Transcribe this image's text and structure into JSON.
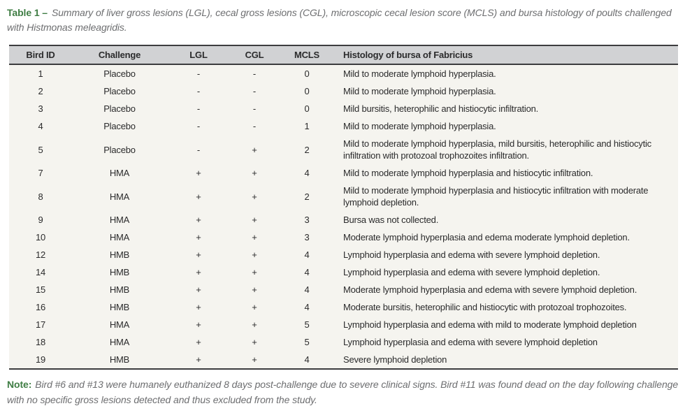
{
  "caption": {
    "label": "Table 1 –",
    "text": "Summary of liver gross lesions (LGL), cecal gross lesions (CGL), microscopic cecal lesion score (MCLS) and bursa histology of poults challenged with Histmonas meleagridis."
  },
  "table": {
    "columns": [
      "Bird ID",
      "Challenge",
      "LGL",
      "CGL",
      "MCLS",
      "Histology of bursa of Fabricius"
    ],
    "rows": [
      {
        "bird_id": "1",
        "challenge": "Placebo",
        "lgl": "-",
        "cgl": "-",
        "mcls": "0",
        "histology": "Mild to moderate lymphoid hyperplasia."
      },
      {
        "bird_id": "2",
        "challenge": "Placebo",
        "lgl": "-",
        "cgl": "-",
        "mcls": "0",
        "histology": "Mild to moderate lymphoid hyperplasia."
      },
      {
        "bird_id": "3",
        "challenge": "Placebo",
        "lgl": "-",
        "cgl": "-",
        "mcls": "0",
        "histology": "Mild bursitis, heterophilic and histiocytic infiltration."
      },
      {
        "bird_id": "4",
        "challenge": "Placebo",
        "lgl": "-",
        "cgl": "-",
        "mcls": "1",
        "histology": "Mild to moderate lymphoid hyperplasia."
      },
      {
        "bird_id": "5",
        "challenge": "Placebo",
        "lgl": "-",
        "cgl": "+",
        "mcls": "2",
        "histology": "Mild to moderate lymphoid hyperplasia, mild bursitis, heterophilic and histiocytic infiltration with protozoal trophozoites infiltration."
      },
      {
        "bird_id": "7",
        "challenge": "HMA",
        "lgl": "+",
        "cgl": "+",
        "mcls": "4",
        "histology": "Mild to moderate lymphoid hyperplasia and histiocytic infiltration."
      },
      {
        "bird_id": "8",
        "challenge": "HMA",
        "lgl": "+",
        "cgl": "+",
        "mcls": "2",
        "histology": "Mild to moderate lymphoid hyperplasia and histiocytic infiltration with moderate lymphoid depletion."
      },
      {
        "bird_id": "9",
        "challenge": "HMA",
        "lgl": "+",
        "cgl": "+",
        "mcls": "3",
        "histology": "Bursa was not collected."
      },
      {
        "bird_id": "10",
        "challenge": "HMA",
        "lgl": "+",
        "cgl": "+",
        "mcls": "3",
        "histology": "Moderate lymphoid hyperplasia and edema moderate lymphoid depletion."
      },
      {
        "bird_id": "12",
        "challenge": "HMB",
        "lgl": "+",
        "cgl": "+",
        "mcls": "4",
        "histology": "Lymphoid hyperplasia and edema with severe lymphoid depletion."
      },
      {
        "bird_id": "14",
        "challenge": "HMB",
        "lgl": "+",
        "cgl": "+",
        "mcls": "4",
        "histology": "Lymphoid hyperplasia and edema with severe lymphoid depletion."
      },
      {
        "bird_id": "15",
        "challenge": "HMB",
        "lgl": "+",
        "cgl": "+",
        "mcls": "4",
        "histology": "Moderate lymphoid hyperplasia and edema with severe lymphoid depletion."
      },
      {
        "bird_id": "16",
        "challenge": "HMB",
        "lgl": "+",
        "cgl": "+",
        "mcls": "4",
        "histology": "Moderate bursitis, heterophilic and histiocytic with protozoal trophozoites."
      },
      {
        "bird_id": "17",
        "challenge": "HMA",
        "lgl": "+",
        "cgl": "+",
        "mcls": "5",
        "histology": "Lymphoid hyperplasia and edema with mild to moderate lymphoid depletion"
      },
      {
        "bird_id": "18",
        "challenge": "HMA",
        "lgl": "+",
        "cgl": "+",
        "mcls": "5",
        "histology": "Lymphoid hyperplasia and edema with severe lymphoid depletion"
      },
      {
        "bird_id": "19",
        "challenge": "HMB",
        "lgl": "+",
        "cgl": "+",
        "mcls": "4",
        "histology": "Severe lymphoid depletion"
      }
    ]
  },
  "note": {
    "label": "Note:",
    "text": "Bird #6 and #13 were humanely euthanized 8 days post-challenge due to severe clinical signs. Bird #11 was found dead on the day following challenge with no specific gross lesions detected and thus excluded from the study."
  },
  "colors": {
    "accent_green": "#3f7d44",
    "header_bg": "#d1d2d4",
    "table_body_bg": "#f5f4ef",
    "text_dark": "#2b2b2c",
    "text_gray": "#6d6e70",
    "border_dark": "#3c3c3e"
  }
}
